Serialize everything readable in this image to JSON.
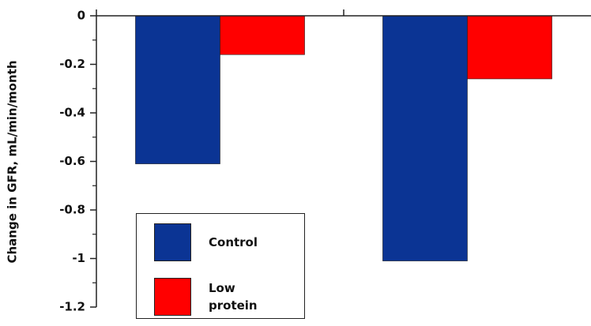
{
  "chart_data": {
    "type": "bar",
    "ylabel": "Change in GFR, mL/min/month",
    "categories": [
      null,
      null
    ],
    "series": [
      {
        "name": "Control",
        "color": "#0b3494",
        "values": [
          -0.61,
          -1.01
        ]
      },
      {
        "name": "Low protein",
        "color": "#ff0000",
        "values": [
          -0.16,
          -0.26
        ]
      }
    ],
    "ylim": [
      -1.2,
      0
    ],
    "yticks": [
      0,
      -0.2,
      -0.4,
      -0.6,
      -0.8,
      -1,
      -1.2
    ],
    "yminorticks": [
      -0.1,
      -0.3,
      -0.5,
      -0.7,
      -0.9,
      -1.1
    ],
    "xaxis_position": "top"
  }
}
